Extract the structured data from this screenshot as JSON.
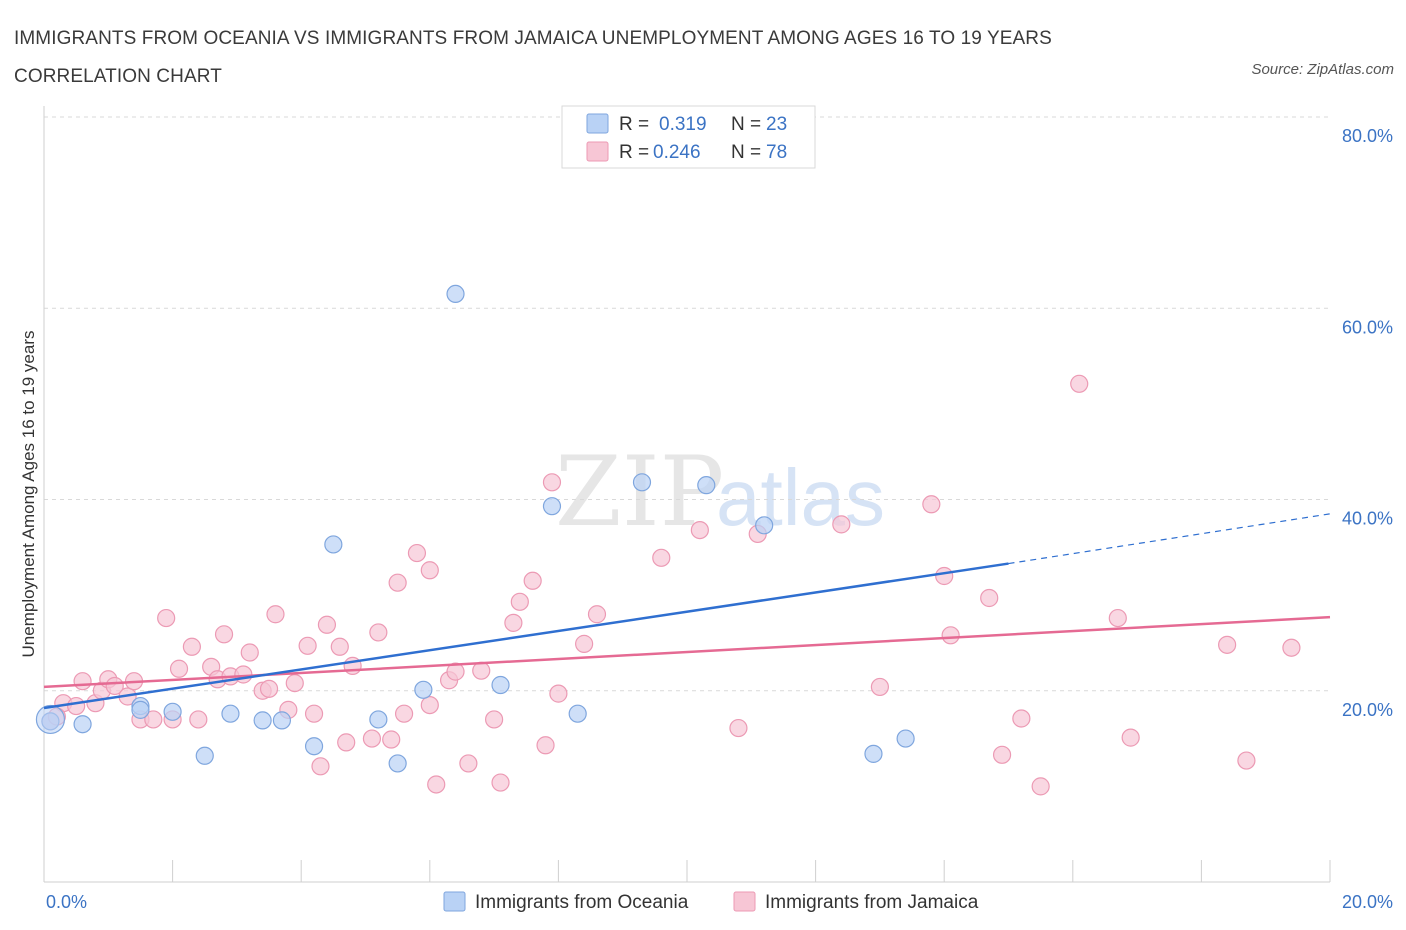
{
  "title": "IMMIGRANTS FROM OCEANIA VS IMMIGRANTS FROM JAMAICA UNEMPLOYMENT AMONG AGES 16 TO 19 YEARS CORRELATION CHART",
  "source": "Source: ZipAtlas.com",
  "watermark": {
    "zip": "ZIP",
    "atlas": "atlas"
  },
  "legend": {
    "r_label": "R =",
    "n_label": "N =",
    "rows": [
      {
        "r": "0.319",
        "n": "23"
      },
      {
        "r": "0.246",
        "n": "78"
      }
    ]
  },
  "colors": {
    "oceania_fill": "#b9d2f5",
    "oceania_stroke": "#7fa6de",
    "oceania_line": "#2f6fd0",
    "jamaica_fill": "#f7c6d5",
    "jamaica_stroke": "#ec9ab4",
    "jamaica_line": "#e56a93",
    "grid": "#d9d9d9",
    "axis_text": "#3b73c4"
  },
  "chart_data": {
    "type": "scatter",
    "xlabel": "",
    "ylabel": "Unemployment Among Ages 16 to 19 years",
    "xlim": [
      0,
      20
    ],
    "ylim": [
      0,
      80
    ],
    "x_tick_labels": [
      "0.0%",
      "20.0%"
    ],
    "y_ticks": [
      20,
      40,
      60,
      80
    ],
    "y_tick_labels": [
      "20.0%",
      "40.0%",
      "60.0%",
      "80.0%"
    ],
    "grid": true,
    "series": [
      {
        "name": "Immigrants from Oceania",
        "points": [
          [
            0.1,
            16.8
          ],
          [
            0.6,
            16.5
          ],
          [
            1.5,
            18.4
          ],
          [
            1.5,
            18.0
          ],
          [
            2.0,
            17.8
          ],
          [
            2.5,
            13.2
          ],
          [
            2.9,
            17.6
          ],
          [
            3.4,
            16.9
          ],
          [
            3.7,
            16.9
          ],
          [
            4.2,
            14.2
          ],
          [
            4.5,
            35.3
          ],
          [
            5.2,
            17.0
          ],
          [
            5.5,
            12.4
          ],
          [
            5.9,
            20.1
          ],
          [
            6.4,
            61.5
          ],
          [
            7.1,
            20.6
          ],
          [
            7.9,
            39.3
          ],
          [
            8.3,
            17.6
          ],
          [
            9.3,
            41.8
          ],
          [
            10.3,
            41.5
          ],
          [
            11.2,
            37.3
          ],
          [
            12.9,
            13.4
          ],
          [
            13.4,
            15.0
          ]
        ],
        "trend": {
          "x": [
            0,
            15
          ],
          "y": [
            18.2,
            33.3
          ]
        },
        "trend_dashed": {
          "x": [
            15,
            20
          ],
          "y": [
            33.3,
            38.5
          ]
        }
      },
      {
        "name": "Immigrants from Jamaica",
        "points": [
          [
            0.1,
            16.8
          ],
          [
            0.3,
            18.7
          ],
          [
            0.5,
            18.4
          ],
          [
            0.6,
            21.0
          ],
          [
            0.8,
            18.7
          ],
          [
            0.9,
            20.0
          ],
          [
            1.0,
            21.2
          ],
          [
            1.1,
            20.5
          ],
          [
            1.3,
            19.4
          ],
          [
            1.4,
            21.0
          ],
          [
            1.5,
            17.0
          ],
          [
            1.7,
            17.0
          ],
          [
            1.9,
            27.6
          ],
          [
            2.0,
            17.0
          ],
          [
            2.1,
            22.3
          ],
          [
            2.3,
            24.6
          ],
          [
            2.6,
            22.5
          ],
          [
            2.7,
            21.2
          ],
          [
            2.8,
            25.9
          ],
          [
            2.9,
            21.5
          ],
          [
            3.1,
            21.7
          ],
          [
            3.2,
            24.0
          ],
          [
            3.4,
            20.0
          ],
          [
            3.5,
            20.2
          ],
          [
            3.6,
            28.0
          ],
          [
            3.8,
            18.0
          ],
          [
            3.9,
            20.8
          ],
          [
            4.1,
            24.7
          ],
          [
            4.2,
            17.6
          ],
          [
            4.3,
            12.1
          ],
          [
            4.4,
            26.9
          ],
          [
            4.6,
            24.6
          ],
          [
            4.7,
            14.6
          ],
          [
            4.8,
            22.6
          ],
          [
            5.1,
            15.0
          ],
          [
            5.2,
            26.1
          ],
          [
            5.4,
            14.9
          ],
          [
            5.5,
            31.3
          ],
          [
            5.6,
            17.6
          ],
          [
            5.8,
            34.4
          ],
          [
            6.0,
            18.5
          ],
          [
            6.0,
            32.6
          ],
          [
            6.1,
            10.2
          ],
          [
            6.3,
            21.1
          ],
          [
            6.4,
            22.0
          ],
          [
            6.6,
            12.4
          ],
          [
            6.8,
            22.1
          ],
          [
            7.0,
            17.0
          ],
          [
            7.1,
            10.4
          ],
          [
            7.3,
            27.1
          ],
          [
            7.4,
            29.3
          ],
          [
            7.6,
            31.5
          ],
          [
            7.8,
            14.3
          ],
          [
            7.9,
            41.8
          ],
          [
            8.0,
            19.7
          ],
          [
            8.4,
            24.9
          ],
          [
            8.6,
            28.0
          ],
          [
            9.6,
            33.9
          ],
          [
            10.2,
            36.8
          ],
          [
            10.8,
            16.1
          ],
          [
            11.1,
            36.4
          ],
          [
            12.4,
            37.4
          ],
          [
            13.0,
            20.4
          ],
          [
            13.8,
            39.5
          ],
          [
            14.0,
            32.0
          ],
          [
            14.1,
            25.8
          ],
          [
            14.7,
            29.7
          ],
          [
            14.9,
            13.3
          ],
          [
            15.2,
            17.1
          ],
          [
            15.5,
            10.0
          ],
          [
            16.1,
            52.1
          ],
          [
            16.7,
            27.6
          ],
          [
            16.9,
            15.1
          ],
          [
            18.4,
            24.8
          ],
          [
            18.7,
            12.7
          ],
          [
            19.4,
            24.5
          ],
          [
            0.2,
            17.3
          ],
          [
            2.4,
            17.0
          ]
        ],
        "trend": {
          "x": [
            0,
            20
          ],
          "y": [
            20.4,
            27.7
          ]
        }
      }
    ]
  },
  "bottom_legend": [
    "Immigrants from Oceania",
    "Immigrants from Jamaica"
  ]
}
